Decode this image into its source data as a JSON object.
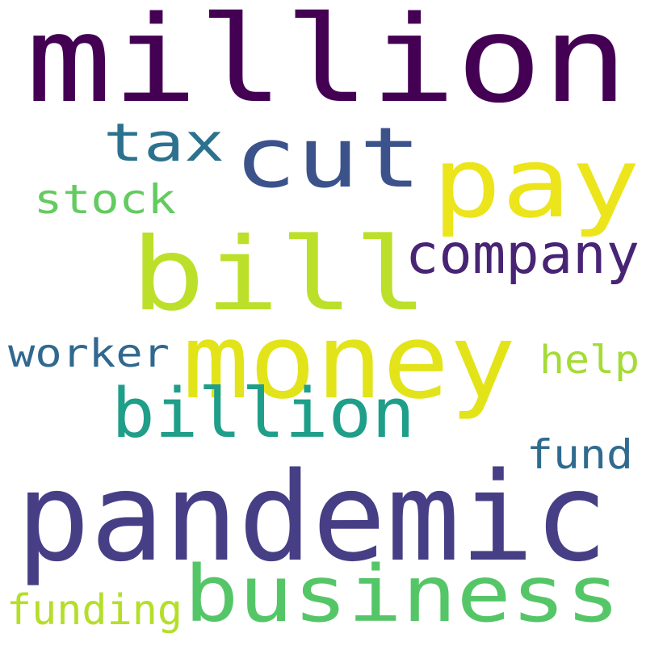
{
  "words": [
    {
      "id": "million",
      "text": "million",
      "color": "#440154"
    },
    {
      "id": "pandemic",
      "text": "pandemic",
      "color": "#463f85"
    },
    {
      "id": "bill",
      "text": "bill",
      "color": "#bce02a"
    },
    {
      "id": "money",
      "text": "money",
      "color": "#e2e419"
    },
    {
      "id": "business",
      "text": "business",
      "color": "#55c667"
    },
    {
      "id": "pay",
      "text": "pay",
      "color": "#ece51b"
    },
    {
      "id": "cut",
      "text": "cut",
      "color": "#3b528b"
    },
    {
      "id": "billion",
      "text": "billion",
      "color": "#1f9e89"
    },
    {
      "id": "company",
      "text": "company",
      "color": "#482475"
    },
    {
      "id": "tax",
      "text": "tax",
      "color": "#2c728e"
    },
    {
      "id": "stock",
      "text": "stock",
      "color": "#63cb5f"
    },
    {
      "id": "worker",
      "text": "worker",
      "color": "#31688e"
    },
    {
      "id": "help",
      "text": "help",
      "color": "#a5db36"
    },
    {
      "id": "fund",
      "text": "fund",
      "color": "#2f6b8e"
    },
    {
      "id": "funding",
      "text": "funding",
      "color": "#b5de2b"
    }
  ]
}
